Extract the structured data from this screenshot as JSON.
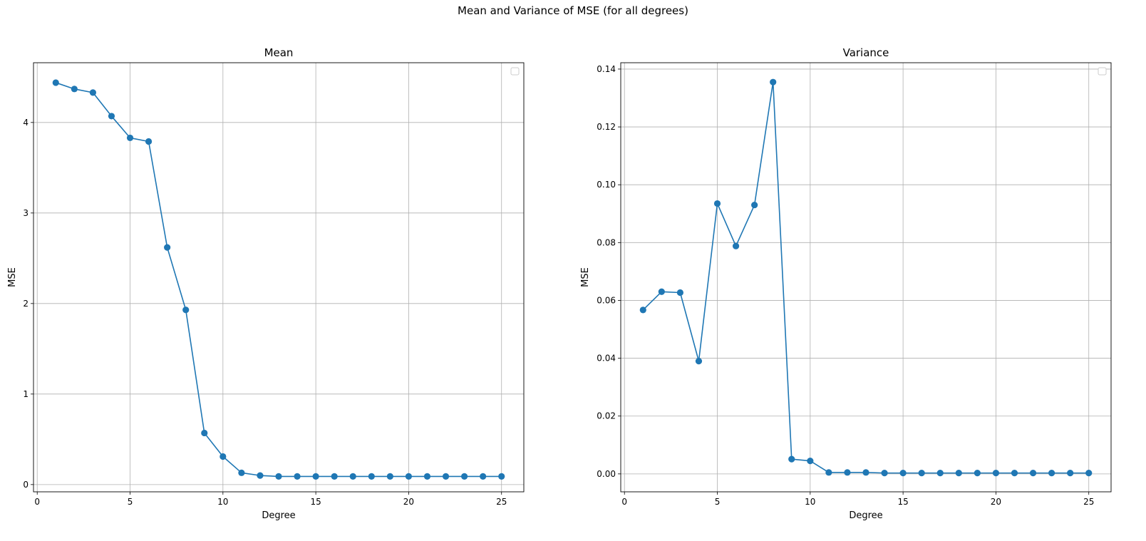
{
  "figure": {
    "suptitle": "Mean and Variance of MSE (for all degrees)"
  },
  "chart_data": [
    {
      "type": "line",
      "title": "Mean",
      "xlabel": "Degree",
      "ylabel": "MSE",
      "xlim": [
        -0.2,
        26.2
      ],
      "ylim": [
        -0.08,
        4.66
      ],
      "xticks": [
        0,
        5,
        10,
        15,
        20,
        25
      ],
      "xtick_labels": [
        "0",
        "5",
        "10",
        "15",
        "20",
        "25"
      ],
      "yticks": [
        0,
        1,
        2,
        3,
        4
      ],
      "ytick_labels": [
        "0",
        "1",
        "2",
        "3",
        "4"
      ],
      "grid": true,
      "legend": "top-right (empty)",
      "color": "#1f77b4",
      "marker": "circle",
      "x": [
        1,
        2,
        3,
        4,
        5,
        6,
        7,
        8,
        9,
        10,
        11,
        12,
        13,
        14,
        15,
        16,
        17,
        18,
        19,
        20,
        21,
        22,
        23,
        24,
        25
      ],
      "y": [
        4.44,
        4.37,
        4.33,
        4.07,
        3.83,
        3.79,
        2.62,
        1.93,
        0.57,
        0.31,
        0.13,
        0.1,
        0.09,
        0.09,
        0.09,
        0.09,
        0.09,
        0.09,
        0.09,
        0.09,
        0.09,
        0.09,
        0.09,
        0.09,
        0.09
      ]
    },
    {
      "type": "line",
      "title": "Variance",
      "xlabel": "Degree",
      "ylabel": "MSE",
      "xlim": [
        -0.2,
        26.2
      ],
      "ylim": [
        -0.0062,
        0.1422
      ],
      "xticks": [
        0,
        5,
        10,
        15,
        20,
        25
      ],
      "xtick_labels": [
        "0",
        "5",
        "10",
        "15",
        "20",
        "25"
      ],
      "yticks": [
        0,
        0.02,
        0.04,
        0.06,
        0.08,
        0.1,
        0.12,
        0.14
      ],
      "ytick_labels": [
        "0.00",
        "0.02",
        "0.04",
        "0.06",
        "0.08",
        "0.10",
        "0.12",
        "0.14"
      ],
      "grid": true,
      "legend": "top-right (empty)",
      "color": "#1f77b4",
      "marker": "circle",
      "x": [
        1,
        2,
        3,
        4,
        5,
        6,
        7,
        8,
        9,
        10,
        11,
        12,
        13,
        14,
        15,
        16,
        17,
        18,
        19,
        20,
        21,
        22,
        23,
        24,
        25
      ],
      "y": [
        0.0567,
        0.063,
        0.0627,
        0.039,
        0.0935,
        0.0788,
        0.093,
        0.1355,
        0.0051,
        0.0045,
        0.0005,
        0.0005,
        0.0005,
        0.0003,
        0.0003,
        0.0003,
        0.0003,
        0.0003,
        0.0003,
        0.0003,
        0.0003,
        0.0003,
        0.0003,
        0.0003,
        0.0003
      ]
    }
  ]
}
